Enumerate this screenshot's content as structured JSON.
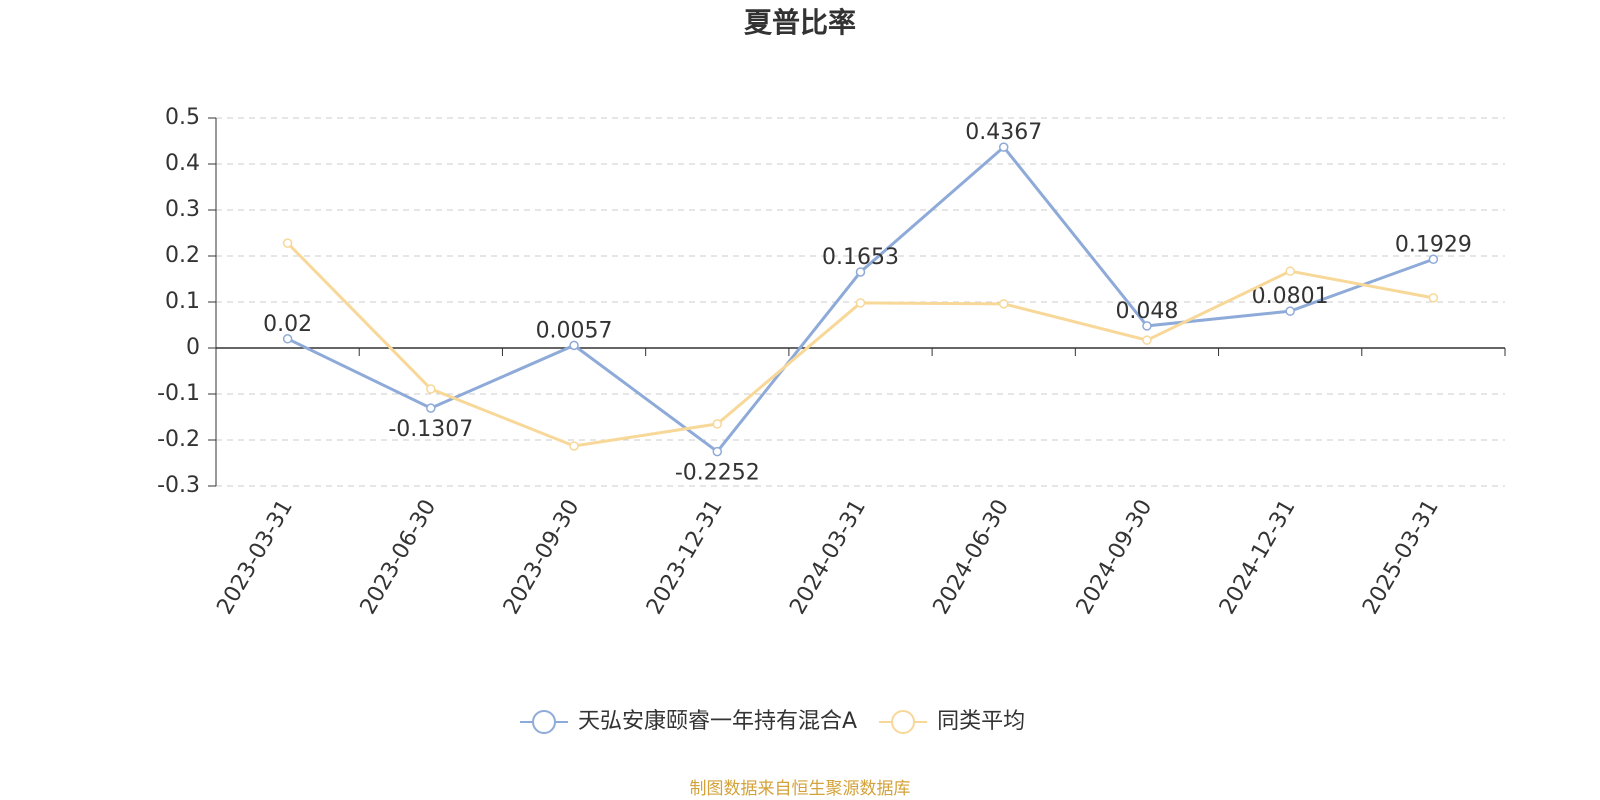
{
  "chart_data": {
    "type": "line",
    "title": "夏普比率",
    "categories": [
      "2023-03-31",
      "2023-06-30",
      "2023-09-30",
      "2023-12-31",
      "2024-03-31",
      "2024-06-30",
      "2024-09-30",
      "2024-12-31",
      "2025-03-31"
    ],
    "series": [
      {
        "name": "天弘安康颐睿一年持有混合A",
        "color": "#8eaad8",
        "values": [
          0.02,
          -0.1307,
          0.0057,
          -0.2252,
          0.1653,
          0.4367,
          0.048,
          0.0801,
          0.1929
        ],
        "show_labels": true
      },
      {
        "name": "同类平均",
        "color": "#f8d898",
        "values": [
          0.228,
          -0.089,
          -0.213,
          -0.165,
          0.098,
          0.096,
          0.017,
          0.167,
          0.109
        ],
        "show_labels": false
      }
    ],
    "ylim": [
      -0.3,
      0.5
    ],
    "yticks": [
      -0.3,
      -0.2,
      -0.1,
      0,
      0.1,
      0.2,
      0.3,
      0.4,
      0.5
    ],
    "grid": true,
    "legend": "bottom",
    "source": "制图数据来自恒生聚源数据库"
  }
}
